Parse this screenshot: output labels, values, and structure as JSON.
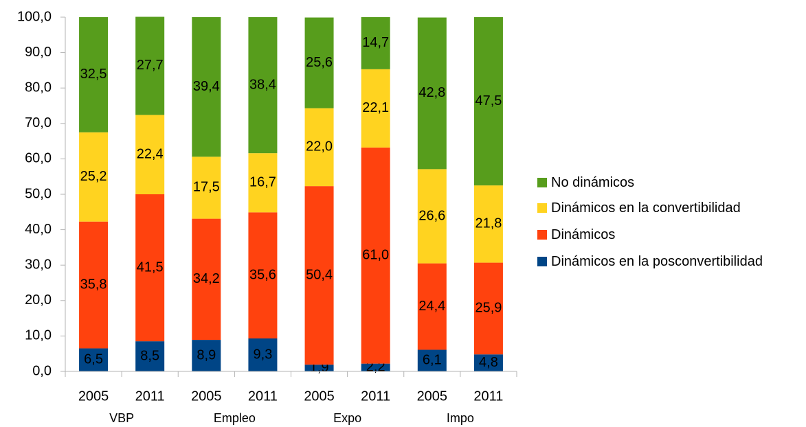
{
  "chart_data": {
    "type": "stacked_bar",
    "categories": [
      "2005",
      "2011",
      "2005",
      "2011",
      "2005",
      "2011",
      "2005",
      "2011"
    ],
    "category_groups": [
      "VBP",
      "Empleo",
      "Expo",
      "Impo"
    ],
    "series": [
      {
        "name": "Dinámicos en la posconvertibilidad",
        "color": "#004586",
        "values": [
          6.5,
          8.5,
          8.9,
          9.3,
          1.9,
          2.2,
          6.1,
          4.8
        ],
        "value_labels": [
          "6,5",
          "8,5",
          "8,9",
          "9,3",
          "1,9",
          "2,2",
          "6,1",
          "4,8"
        ]
      },
      {
        "name": "Dinámicos",
        "color": "#ff420e",
        "values": [
          35.8,
          41.5,
          34.2,
          35.6,
          50.4,
          61.0,
          24.4,
          25.9
        ],
        "value_labels": [
          "35,8",
          "41,5",
          "34,2",
          "35,6",
          "50,4",
          "61,0",
          "24,4",
          "25,9"
        ]
      },
      {
        "name": "Dinámicos en la convertibilidad",
        "color": "#ffd320",
        "values": [
          25.2,
          22.4,
          17.5,
          16.7,
          22.0,
          22.1,
          26.6,
          21.8
        ],
        "value_labels": [
          "25,2",
          "22,4",
          "17,5",
          "16,7",
          "22,0",
          "22,1",
          "26,6",
          "21,8"
        ]
      },
      {
        "name": "No dinámicos",
        "color": "#579d1c",
        "values": [
          32.5,
          27.7,
          39.4,
          38.4,
          25.6,
          14.7,
          42.8,
          47.5
        ],
        "value_labels": [
          "32,5",
          "27,7",
          "39,4",
          "38,4",
          "25,6",
          "14,7",
          "42,8",
          "47,5"
        ]
      }
    ],
    "ylim": [
      0,
      100
    ],
    "yticks": [
      {
        "value": 0,
        "label": "0,0"
      },
      {
        "value": 10,
        "label": "10,0"
      },
      {
        "value": 20,
        "label": "20,0"
      },
      {
        "value": 30,
        "label": "30,0"
      },
      {
        "value": 40,
        "label": "40,0"
      },
      {
        "value": 50,
        "label": "50,0"
      },
      {
        "value": 60,
        "label": "60,0"
      },
      {
        "value": 70,
        "label": "70,0"
      },
      {
        "value": 80,
        "label": "80,0"
      },
      {
        "value": 90,
        "label": "90,0"
      },
      {
        "value": 100,
        "label": "100,0"
      }
    ],
    "grid": false,
    "legend": "right"
  }
}
